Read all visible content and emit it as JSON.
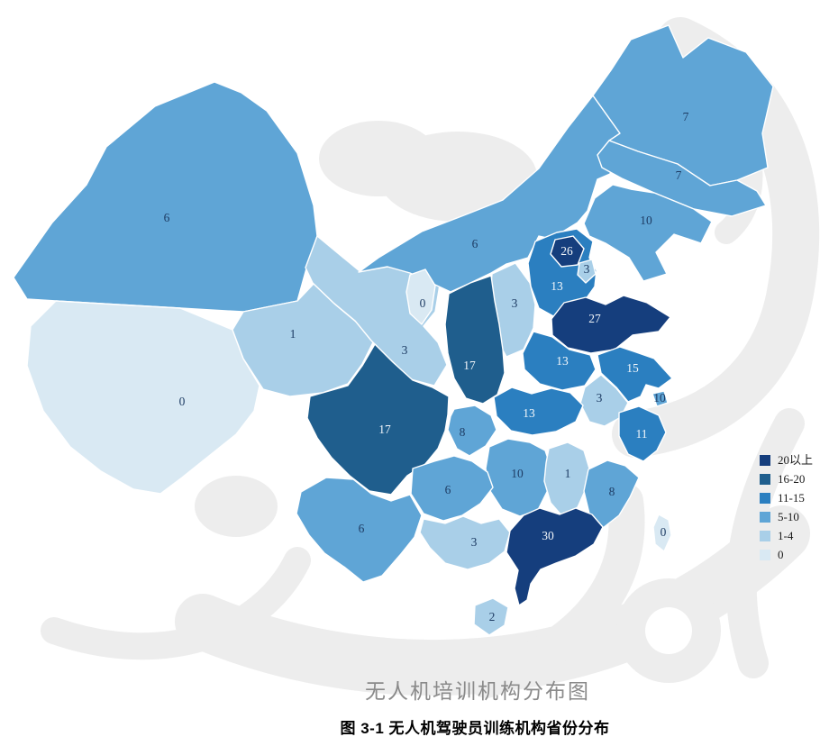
{
  "page": {
    "map_title": "无人机培训机构分布图",
    "figure_caption": "图 3-1 无人机驾驶员训练机构省份分布"
  },
  "legend": {
    "items": [
      {
        "label": "20以上",
        "color": "#153e7d"
      },
      {
        "label": "16-20",
        "color": "#1f5e8d"
      },
      {
        "label": "11-15",
        "color": "#2b7fc0"
      },
      {
        "label": "5-10",
        "color": "#5fa5d6"
      },
      {
        "label": "1-4",
        "color": "#a9cfe8"
      },
      {
        "label": "0",
        "color": "#d9e9f3"
      }
    ]
  },
  "chart_data": {
    "type": "choropleth_map",
    "title": "无人机培训机构分布图",
    "caption": "图 3-1 无人机驾驶员训练机构省份分布",
    "legend_bands": [
      "20以上",
      "16-20",
      "11-15",
      "5-10",
      "1-4",
      "0"
    ],
    "band_colors": {
      "20以上": "#153e7d",
      "16-20": "#1f5e8d",
      "11-15": "#2b7fc0",
      "5-10": "#5fa5d6",
      "1-4": "#a9cfe8",
      "0": "#d9e9f3"
    },
    "provinces": [
      {
        "id": "xinjiang",
        "name": "新疆",
        "value": 6,
        "band": "5-10"
      },
      {
        "id": "xizang",
        "name": "西藏",
        "value": 0,
        "band": "0"
      },
      {
        "id": "qinghai",
        "name": "青海",
        "value": 1,
        "band": "1-4"
      },
      {
        "id": "gansu",
        "name": "甘肃",
        "value": 3,
        "band": "1-4"
      },
      {
        "id": "neimenggu",
        "name": "内蒙古",
        "value": 6,
        "band": "5-10"
      },
      {
        "id": "heilongjiang",
        "name": "黑龙江",
        "value": 7,
        "band": "5-10"
      },
      {
        "id": "jilin",
        "name": "吉林",
        "value": 7,
        "band": "5-10"
      },
      {
        "id": "liaoning",
        "name": "辽宁",
        "value": 10,
        "band": "5-10"
      },
      {
        "id": "hebei",
        "name": "河北",
        "value": 13,
        "band": "11-15"
      },
      {
        "id": "shanxi",
        "name": "山西",
        "value": 3,
        "band": "1-4"
      },
      {
        "id": "shaanxi",
        "name": "陕西",
        "value": 17,
        "band": "16-20"
      },
      {
        "id": "shandong",
        "name": "山东",
        "value": 27,
        "band": "20以上"
      },
      {
        "id": "henan",
        "name": "河南",
        "value": 13,
        "band": "11-15"
      },
      {
        "id": "jiangsu",
        "name": "江苏",
        "value": 15,
        "band": "11-15"
      },
      {
        "id": "anhui",
        "name": "安徽",
        "value": 3,
        "band": "1-4"
      },
      {
        "id": "hubei",
        "name": "湖北",
        "value": 13,
        "band": "11-15"
      },
      {
        "id": "sichuan",
        "name": "四川",
        "value": 17,
        "band": "16-20"
      },
      {
        "id": "zhejiang",
        "name": "浙江",
        "value": 11,
        "band": "11-15"
      },
      {
        "id": "hunan",
        "name": "湖南",
        "value": 10,
        "band": "5-10"
      },
      {
        "id": "jiangxi",
        "name": "江西",
        "value": 1,
        "band": "1-4"
      },
      {
        "id": "guizhou",
        "name": "贵州",
        "value": 6,
        "band": "5-10"
      },
      {
        "id": "fujian",
        "name": "福建",
        "value": 8,
        "band": "5-10"
      },
      {
        "id": "yunnan",
        "name": "云南",
        "value": 6,
        "band": "5-10"
      },
      {
        "id": "guangxi",
        "name": "广西",
        "value": 3,
        "band": "1-4"
      },
      {
        "id": "guangdong",
        "name": "广东",
        "value": 30,
        "band": "20以上"
      },
      {
        "id": "hainan",
        "name": "海南",
        "value": 2,
        "band": "1-4"
      },
      {
        "id": "taiwan",
        "name": "台湾",
        "value": 0,
        "band": "0"
      },
      {
        "id": "ningxia",
        "name": "宁夏",
        "value": 0,
        "band": "0"
      },
      {
        "id": "chongqing",
        "name": "重庆",
        "value": 8,
        "band": "5-10"
      },
      {
        "id": "beijing",
        "name": "北京",
        "value": 26,
        "band": "20以上"
      },
      {
        "id": "tianjin",
        "name": "天津",
        "value": 3,
        "band": "1-4"
      },
      {
        "id": "shanghai",
        "name": "上海",
        "value": 10,
        "band": "5-10"
      }
    ]
  }
}
